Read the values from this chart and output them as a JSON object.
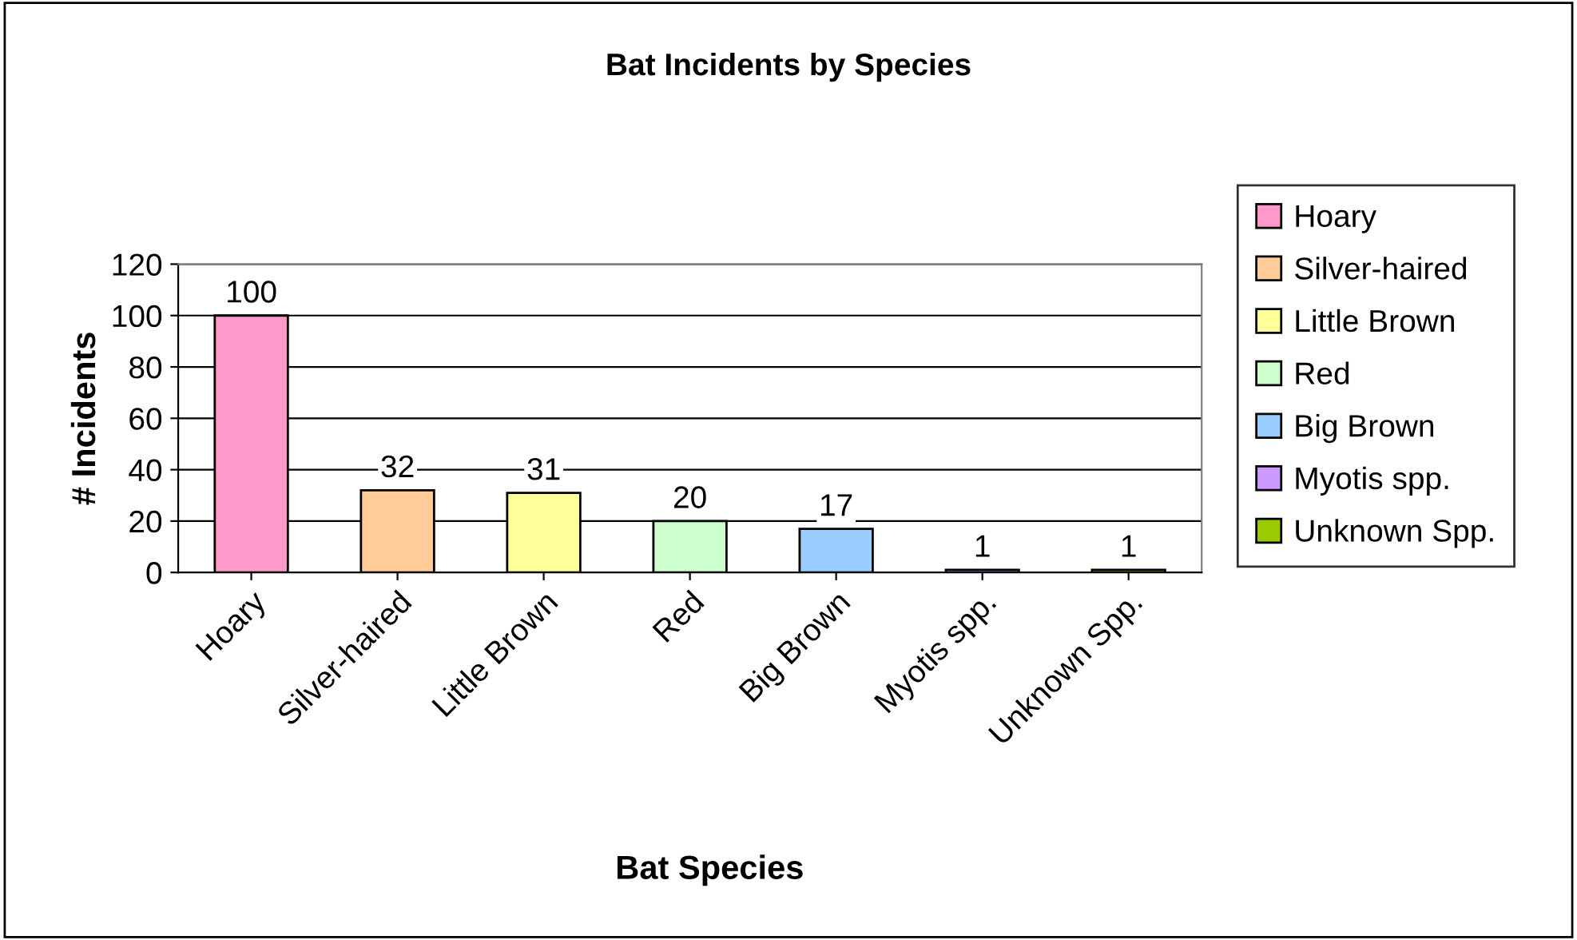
{
  "chart_data": {
    "type": "bar",
    "title": "Bat Incidents by Species",
    "xlabel": "Bat Species",
    "ylabel": "# Incidents",
    "categories": [
      "Hoary",
      "Silver-haired",
      "Little Brown",
      "Red",
      "Big Brown",
      "Myotis spp.",
      "Unknown Spp."
    ],
    "series": [
      {
        "name": "Hoary",
        "color": "#ff99cc",
        "values": [
          100,
          null,
          null,
          null,
          null,
          null,
          null
        ]
      },
      {
        "name": "Silver-haired",
        "color": "#ffcc99",
        "values": [
          null,
          32,
          null,
          null,
          null,
          null,
          null
        ]
      },
      {
        "name": "Little Brown",
        "color": "#ffff99",
        "values": [
          null,
          null,
          31,
          null,
          null,
          null,
          null
        ]
      },
      {
        "name": "Red",
        "color": "#ccffcc",
        "values": [
          null,
          null,
          null,
          20,
          null,
          null,
          null
        ]
      },
      {
        "name": "Big Brown",
        "color": "#99ccff",
        "values": [
          null,
          null,
          null,
          null,
          17,
          null,
          null
        ]
      },
      {
        "name": "Myotis spp.",
        "color": "#cc99ff",
        "values": [
          null,
          null,
          null,
          null,
          null,
          1,
          null
        ]
      },
      {
        "name": "Unknown Spp.",
        "color": "#99cc00",
        "values": [
          null,
          null,
          null,
          null,
          null,
          null,
          1
        ]
      }
    ],
    "ylim": [
      0,
      120
    ],
    "yticks": [
      0,
      20,
      40,
      60,
      80,
      100,
      120
    ],
    "grid": "y",
    "legend": "right",
    "data_labels": true
  }
}
